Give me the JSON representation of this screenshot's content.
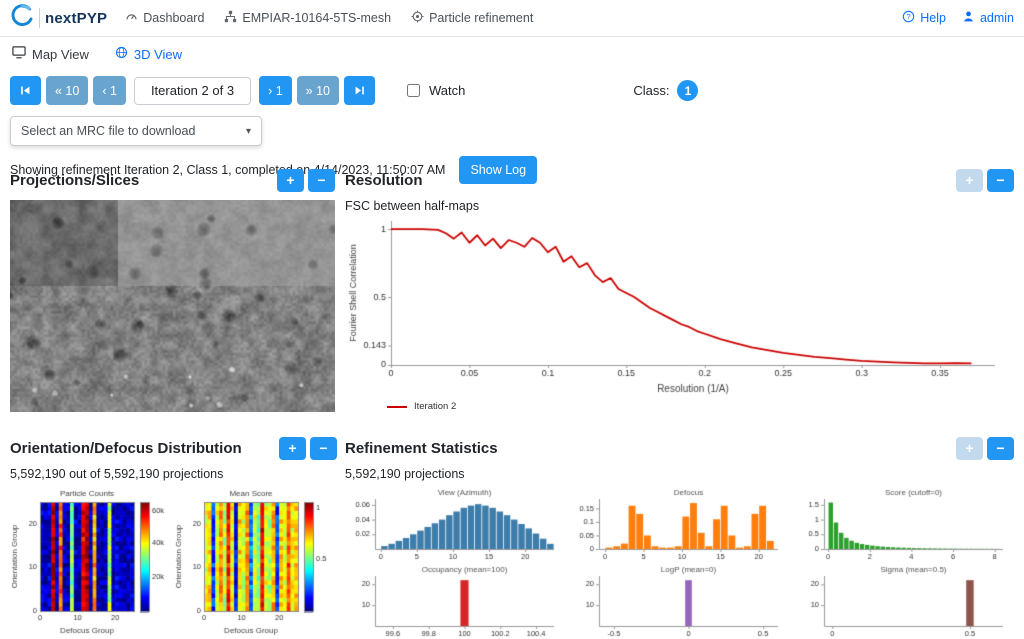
{
  "navbar": {
    "brand": "nextPYP",
    "dashboard": "Dashboard",
    "project": "EMPIAR-10164-5TS-mesh",
    "refinement": "Particle refinement",
    "help": "Help",
    "user": "admin"
  },
  "tabs": {
    "map_view": "Map View",
    "three_d_view": "3D View"
  },
  "controls": {
    "back10_label": "« 10",
    "back1_label": "‹ 1",
    "iteration_label": "Iteration 2 of 3",
    "fwd1_label": "› 1",
    "fwd10_label": "» 10",
    "watch_label": "Watch",
    "class_label": "Class:",
    "class_value": "1"
  },
  "download": {
    "placeholder": "Select an MRC file to download"
  },
  "status": {
    "text": "Showing refinement Iteration 2, Class 1, completed on 4/14/2023, 11:50:07 AM",
    "show_log": "Show Log"
  },
  "pm": {
    "plus": "+",
    "minus": "−"
  },
  "panels": {
    "projections": {
      "title": "Projections/Slices"
    },
    "resolution": {
      "title": "Resolution",
      "subtitle": "FSC between half-maps"
    },
    "orientation": {
      "title": "Orientation/Defocus Distribution",
      "subtitle": "5,592,190 out of 5,592,190 projections"
    },
    "statistics": {
      "title": "Refinement Statistics",
      "subtitle": "5,592,190 projections"
    }
  },
  "chart_data": [
    {
      "id": "fsc",
      "type": "line",
      "legend": "Iteration 2",
      "xlabel": "Resolution (1/A)",
      "ylabel": "Fourier Shell Correlation",
      "color": "#cc0000",
      "xlim": [
        0,
        0.385
      ],
      "ylim": [
        0,
        1.06
      ],
      "xticks": [
        0,
        0.05,
        0.1,
        0.15,
        0.2,
        0.25,
        0.3,
        0.35
      ],
      "yticks": [
        0,
        0.143,
        0.5,
        1
      ],
      "x": [
        0,
        0.01,
        0.02,
        0.03,
        0.035,
        0.04,
        0.045,
        0.05,
        0.055,
        0.06,
        0.065,
        0.07,
        0.075,
        0.08,
        0.085,
        0.09,
        0.095,
        0.1,
        0.105,
        0.11,
        0.115,
        0.12,
        0.125,
        0.13,
        0.135,
        0.14,
        0.145,
        0.15,
        0.155,
        0.16,
        0.165,
        0.17,
        0.175,
        0.18,
        0.185,
        0.19,
        0.195,
        0.2,
        0.21,
        0.22,
        0.23,
        0.24,
        0.25,
        0.26,
        0.27,
        0.28,
        0.29,
        0.3,
        0.31,
        0.32,
        0.33,
        0.34,
        0.35,
        0.36,
        0.37
      ],
      "y": [
        1,
        1,
        1,
        0.995,
        0.97,
        0.93,
        0.975,
        0.9,
        0.955,
        0.88,
        0.93,
        0.86,
        0.92,
        0.9,
        0.87,
        0.935,
        0.9,
        0.83,
        0.87,
        0.76,
        0.8,
        0.72,
        0.75,
        0.66,
        0.61,
        0.64,
        0.56,
        0.53,
        0.5,
        0.46,
        0.42,
        0.39,
        0.36,
        0.33,
        0.3,
        0.28,
        0.25,
        0.23,
        0.19,
        0.16,
        0.13,
        0.11,
        0.09,
        0.075,
        0.06,
        0.05,
        0.04,
        0.03,
        0.025,
        0.02,
        0.015,
        0.012,
        0.012,
        0.014,
        0.012
      ]
    },
    {
      "id": "particle_counts",
      "type": "heatmap",
      "title": "Particle Counts",
      "xlabel": "Defocus Group",
      "ylabel": "Orientation Group",
      "xlim": [
        0,
        25
      ],
      "ylim": [
        0,
        25
      ],
      "xticks": [
        0,
        10,
        20
      ],
      "yticks": [
        0,
        10,
        20
      ],
      "columns": [
        0.07,
        0.05,
        0.08,
        0.95,
        0.07,
        0.78,
        0.06,
        0.05,
        0.5,
        0.07,
        0.05,
        0.88,
        0.97,
        0.07,
        0.72,
        0.06,
        0.05,
        0.07,
        0.55,
        0.05,
        0.08,
        0.05,
        0.06,
        0.05,
        0.07
      ],
      "colorbar_ticks": [
        {
          "pos": 0.31,
          "label": "20k"
        },
        {
          "pos": 0.62,
          "label": "40k"
        },
        {
          "pos": 0.92,
          "label": "60k"
        }
      ]
    },
    {
      "id": "mean_score",
      "type": "heatmap",
      "title": "Mean Score",
      "xlabel": "Defocus Group",
      "ylabel": "Orientation Group",
      "xlim": [
        0,
        25
      ],
      "ylim": [
        0,
        25
      ],
      "xticks": [
        0,
        10,
        20
      ],
      "yticks": [
        0,
        10,
        20
      ],
      "columns": [
        0.6,
        0.66,
        0.18,
        0.6,
        0.72,
        0.55,
        0.85,
        0.62,
        0.12,
        0.66,
        0.58,
        0.72,
        0.25,
        0.6,
        0.5,
        0.88,
        0.6,
        0.55,
        0.7,
        0.18,
        0.66,
        0.58,
        0.8,
        0.62,
        0.66
      ],
      "colorbar_ticks": [
        {
          "pos": 0.48,
          "label": "0.5"
        },
        {
          "pos": 0.95,
          "label": "1"
        }
      ]
    },
    {
      "id": "view_azimuth",
      "type": "hist",
      "title": "View (Azimuth)",
      "color": "#3d7dab",
      "x0": 0,
      "dx": 1,
      "values": [
        0.004,
        0.007,
        0.011,
        0.015,
        0.02,
        0.025,
        0.03,
        0.035,
        0.04,
        0.046,
        0.051,
        0.056,
        0.059,
        0.061,
        0.059,
        0.056,
        0.051,
        0.046,
        0.04,
        0.034,
        0.028,
        0.021,
        0.014,
        0.007
      ],
      "xlim": [
        -0.8,
        24
      ],
      "ylim": [
        0,
        0.068
      ],
      "xticks": [
        0,
        5,
        10,
        15,
        20
      ],
      "yticks": [
        0.02,
        0.04,
        0.06
      ]
    },
    {
      "id": "defocus",
      "type": "hist",
      "title": "Defocus",
      "color": "#ff7f0e",
      "x0": 0,
      "dx": 1,
      "values": [
        0.005,
        0.01,
        0.02,
        0.16,
        0.13,
        0.05,
        0.01,
        0.005,
        0.005,
        0.01,
        0.12,
        0.17,
        0.06,
        0.01,
        0.11,
        0.16,
        0.05,
        0.005,
        0.01,
        0.13,
        0.16,
        0.03
      ],
      "xlim": [
        -0.8,
        22.5
      ],
      "ylim": [
        0,
        0.185
      ],
      "xticks": [
        0,
        5,
        10,
        15,
        20
      ],
      "yticks": [
        0,
        0.05,
        0.1,
        0.15
      ]
    },
    {
      "id": "score",
      "type": "hist",
      "title": "Score (cutoff=0)",
      "color": "#2ca02c",
      "x0": 0,
      "dx": 0.25,
      "values": [
        1.58,
        0.9,
        0.55,
        0.38,
        0.28,
        0.21,
        0.17,
        0.14,
        0.115,
        0.095,
        0.08,
        0.068,
        0.058,
        0.05,
        0.044,
        0.038,
        0.033,
        0.029,
        0.026,
        0.023,
        0.02,
        0.018,
        0.016,
        0.014,
        0.013,
        0.011,
        0.01,
        0.009,
        0.008,
        0.007,
        0.007,
        0.006,
        0.005
      ],
      "xlim": [
        -0.2,
        8.4
      ],
      "ylim": [
        0,
        1.7
      ],
      "xticks": [
        0,
        2,
        4,
        6,
        8
      ],
      "yticks": [
        0,
        0.5,
        1,
        1.5
      ]
    },
    {
      "id": "occupancy",
      "type": "vbar",
      "title": "Occupancy (mean=100)",
      "color": "#d62728",
      "bars": [
        {
          "x": 100,
          "h": 22
        }
      ],
      "barw": 0.05,
      "xlim": [
        99.5,
        100.5
      ],
      "ylim": [
        0,
        24
      ],
      "xticks": [
        99.6,
        99.8,
        100,
        100.2,
        100.4
      ],
      "yticks": [
        10,
        20
      ]
    },
    {
      "id": "logp",
      "type": "vbar",
      "title": "LogP (mean=0)",
      "color": "#9467bd",
      "bars": [
        {
          "x": 0,
          "h": 22
        }
      ],
      "barw": 0.05,
      "xlim": [
        -0.6,
        0.6
      ],
      "ylim": [
        0,
        24
      ],
      "xticks": [
        -0.5,
        0,
        0.5
      ],
      "yticks": [
        10,
        20
      ]
    },
    {
      "id": "sigma",
      "type": "vbar",
      "title": "Sigma (mean=0.5)",
      "color": "#8c564b",
      "bars": [
        {
          "x": 0.5,
          "h": 22
        }
      ],
      "barw": 0.03,
      "xlim": [
        -0.03,
        0.62
      ],
      "ylim": [
        0,
        24
      ],
      "xticks": [
        0,
        0.5
      ],
      "yticks": [
        10,
        20
      ]
    }
  ]
}
